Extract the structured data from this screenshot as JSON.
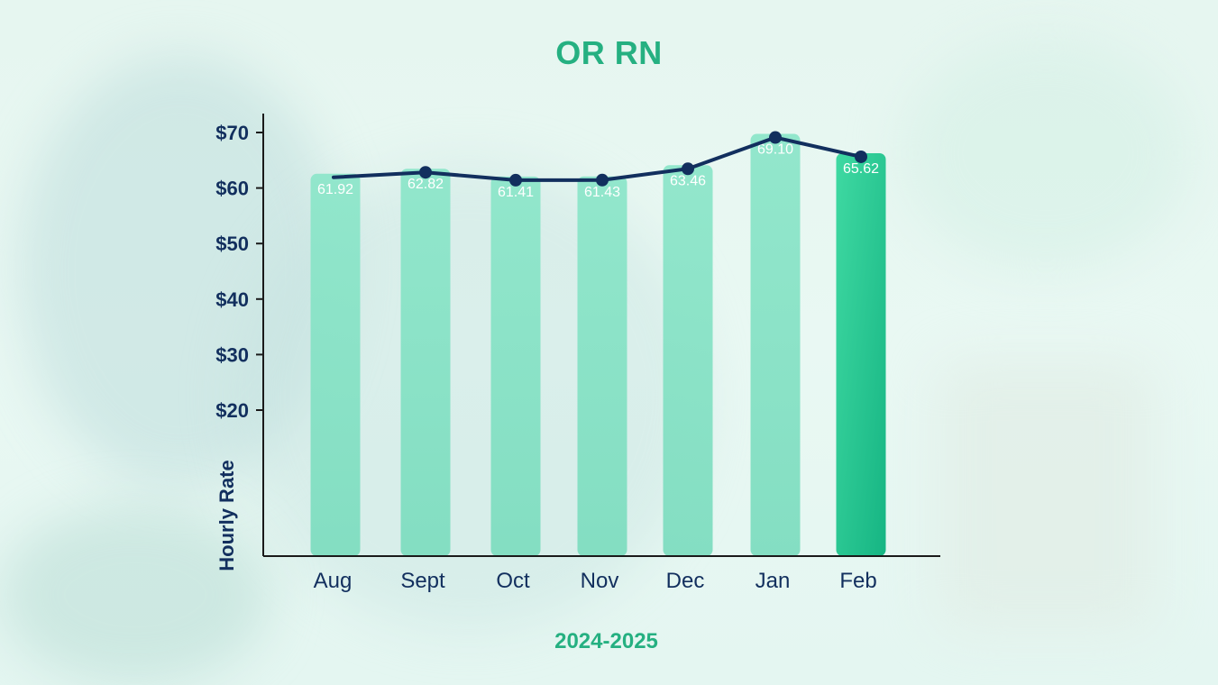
{
  "chart_data": {
    "type": "bar",
    "title": "OR RN",
    "subtitle": "2024-2025",
    "ylabel": "Hourly Rate",
    "xlabel": "2024-2025",
    "categories": [
      "Aug",
      "Sept",
      "Oct",
      "Nov",
      "Dec",
      "Jan",
      "Feb"
    ],
    "series": [
      {
        "type": "bar",
        "values": [
          61.92,
          62.82,
          61.41,
          61.43,
          63.46,
          69.1,
          65.62
        ]
      },
      {
        "type": "line",
        "values": [
          61.92,
          62.82,
          61.41,
          61.43,
          63.46,
          69.1,
          65.62
        ]
      }
    ],
    "data_labels": [
      "61.92",
      "62.82",
      "61.41",
      "61.43",
      "63.46",
      "69.10",
      "65.62"
    ],
    "y_ticks": [
      {
        "value": 70,
        "label": "$70"
      },
      {
        "value": 60,
        "label": "$60"
      },
      {
        "value": 50,
        "label": "$50"
      },
      {
        "value": 40,
        "label": "$40"
      },
      {
        "value": 30,
        "label": "$30"
      },
      {
        "value": 20,
        "label": "$20"
      }
    ],
    "grid": false,
    "colors": {
      "bar": "#8ee3c8",
      "bar_highlight": "#1fbf8a",
      "line": "#122f5e",
      "axis": "#1a1a1a",
      "title": "#25b081"
    }
  }
}
